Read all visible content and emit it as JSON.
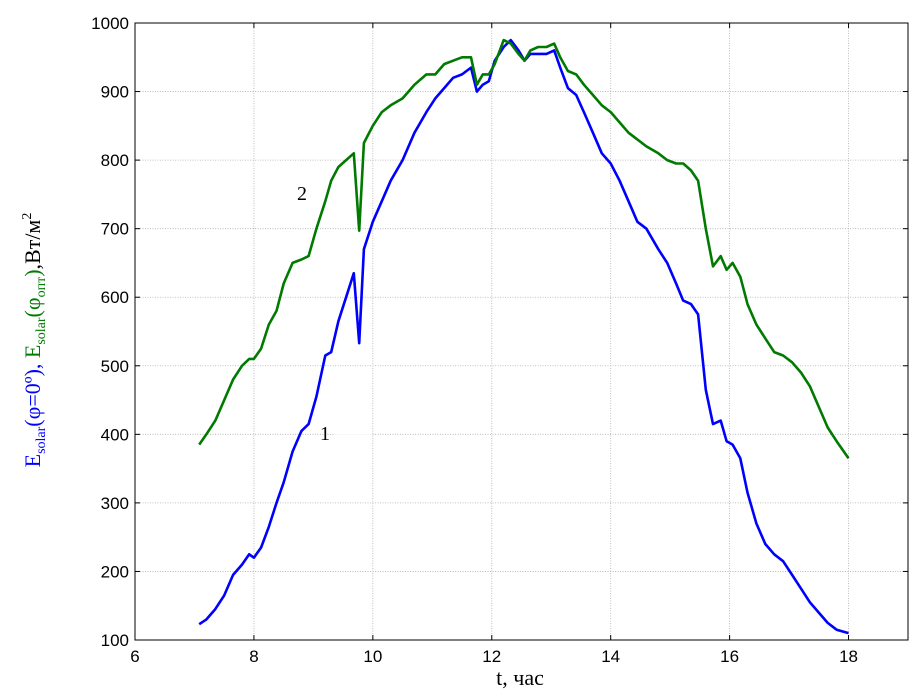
{
  "chart_data": {
    "type": "line",
    "xlabel": "t, час",
    "ylabel": {
      "part1": "E",
      "part1_sub": "solar",
      "part1_rest": "(φ=0º), ",
      "part2": "E",
      "part2_sub": "solar",
      "part2_rest": "(φ",
      "part2_sub2": "опт",
      "part2_end": ")",
      "part3": ",Вт/м",
      "part3_sup": "2"
    },
    "xlim": [
      6,
      19
    ],
    "ylim": [
      100,
      1000
    ],
    "x_ticks": [
      6,
      8,
      10,
      12,
      14,
      16,
      18
    ],
    "y_ticks": [
      100,
      200,
      300,
      400,
      500,
      600,
      700,
      800,
      900,
      1000
    ],
    "grid": true,
    "curve_labels": [
      {
        "text": "1",
        "series": 0
      },
      {
        "text": "2",
        "series": 1
      }
    ],
    "series": [
      {
        "color": "#0000ff",
        "x": [
          7.08,
          7.2,
          7.35,
          7.5,
          7.65,
          7.8,
          7.92,
          8.0,
          8.12,
          8.25,
          8.38,
          8.5,
          8.65,
          8.8,
          8.92,
          9.05,
          9.2,
          9.3,
          9.42,
          9.55,
          9.68,
          9.77,
          9.85,
          10.0,
          10.15,
          10.3,
          10.5,
          10.7,
          10.9,
          11.05,
          11.2,
          11.35,
          11.5,
          11.65,
          11.75,
          11.85,
          11.95,
          12.05,
          12.2,
          12.32,
          12.45,
          12.55,
          12.65,
          12.78,
          12.92,
          13.05,
          13.15,
          13.28,
          13.42,
          13.55,
          13.7,
          13.85,
          14.0,
          14.15,
          14.3,
          14.45,
          14.6,
          14.8,
          14.95,
          15.1,
          15.22,
          15.35,
          15.47,
          15.6,
          15.72,
          15.85,
          15.95,
          16.05,
          16.18,
          16.3,
          16.45,
          16.6,
          16.75,
          16.9,
          17.05,
          17.2,
          17.35,
          17.5,
          17.65,
          17.8,
          18.0
        ],
        "values": [
          123,
          130,
          145,
          165,
          195,
          210,
          225,
          220,
          235,
          265,
          300,
          330,
          375,
          405,
          415,
          455,
          515,
          520,
          565,
          600,
          635,
          533,
          670,
          710,
          740,
          770,
          800,
          840,
          870,
          890,
          905,
          920,
          925,
          935,
          900,
          910,
          915,
          945,
          965,
          975,
          960,
          945,
          955,
          955,
          955,
          960,
          935,
          905,
          895,
          870,
          840,
          810,
          795,
          770,
          740,
          710,
          700,
          670,
          650,
          620,
          595,
          590,
          575,
          465,
          415,
          420,
          390,
          385,
          365,
          315,
          270,
          240,
          225,
          215,
          195,
          175,
          155,
          140,
          125,
          115,
          110
        ]
      },
      {
        "color": "#007a00",
        "x": [
          7.08,
          7.2,
          7.35,
          7.5,
          7.65,
          7.8,
          7.92,
          8.0,
          8.12,
          8.25,
          8.38,
          8.5,
          8.65,
          8.8,
          8.92,
          9.05,
          9.2,
          9.3,
          9.42,
          9.55,
          9.68,
          9.77,
          9.85,
          10.0,
          10.15,
          10.3,
          10.5,
          10.7,
          10.9,
          11.05,
          11.2,
          11.35,
          11.5,
          11.65,
          11.75,
          11.85,
          11.95,
          12.05,
          12.2,
          12.32,
          12.45,
          12.55,
          12.65,
          12.78,
          12.92,
          13.05,
          13.15,
          13.28,
          13.42,
          13.55,
          13.7,
          13.85,
          14.0,
          14.15,
          14.3,
          14.45,
          14.6,
          14.8,
          14.95,
          15.1,
          15.22,
          15.35,
          15.47,
          15.6,
          15.72,
          15.85,
          15.95,
          16.05,
          16.18,
          16.3,
          16.45,
          16.6,
          16.75,
          16.9,
          17.05,
          17.2,
          17.35,
          17.5,
          17.65,
          17.8,
          18.0
        ],
        "values": [
          385,
          400,
          420,
          450,
          480,
          500,
          510,
          510,
          525,
          560,
          580,
          620,
          650,
          655,
          660,
          700,
          740,
          770,
          790,
          800,
          810,
          697,
          825,
          850,
          870,
          880,
          890,
          910,
          925,
          925,
          940,
          945,
          950,
          950,
          910,
          925,
          925,
          940,
          975,
          970,
          955,
          945,
          960,
          965,
          965,
          970,
          950,
          930,
          925,
          910,
          895,
          880,
          870,
          855,
          840,
          830,
          820,
          810,
          800,
          795,
          795,
          785,
          770,
          700,
          645,
          660,
          640,
          650,
          630,
          590,
          560,
          540,
          520,
          515,
          505,
          490,
          470,
          440,
          410,
          390,
          365
        ]
      }
    ]
  }
}
